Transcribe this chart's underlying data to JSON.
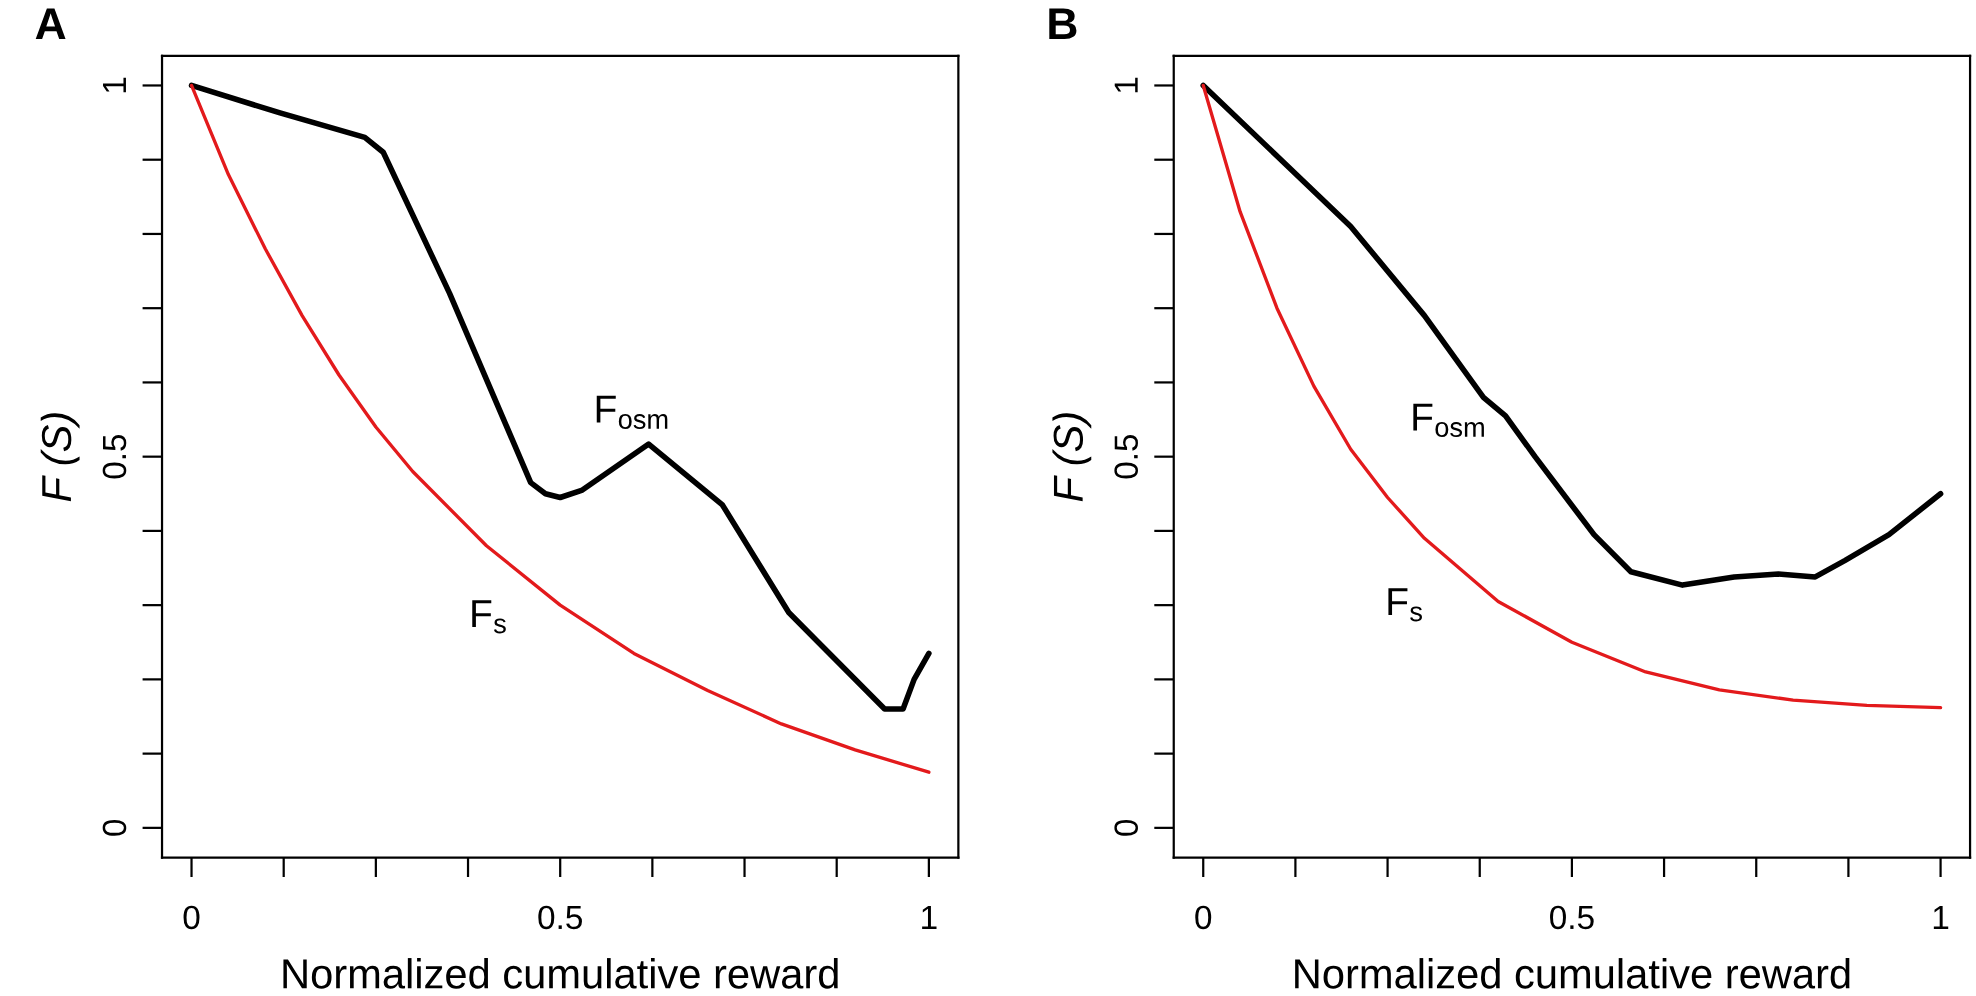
{
  "chart_data": [
    {
      "type": "line",
      "title": "A",
      "xlabel": "Normalized cumulative reward",
      "ylabel": "F (S)",
      "xlim": [
        -0.04,
        1.04
      ],
      "ylim": [
        -0.04,
        1.04
      ],
      "xticks": [
        0,
        {
          "value": 0.125,
          "label": null
        },
        {
          "value": 0.25,
          "label": null
        },
        {
          "value": 0.375,
          "label": null
        },
        0.5,
        {
          "value": 0.625,
          "label": null
        },
        {
          "value": 0.75,
          "label": null
        },
        {
          "value": 0.875,
          "label": null
        },
        1
      ],
      "yticks": [
        0,
        {
          "value": 0.1,
          "label": null
        },
        {
          "value": 0.2,
          "label": null
        },
        {
          "value": 0.3,
          "label": null
        },
        {
          "value": 0.4,
          "label": null
        },
        0.5,
        {
          "value": 0.6,
          "label": null
        },
        {
          "value": 0.7,
          "label": null
        },
        {
          "value": 0.8,
          "label": null
        },
        {
          "value": 0.9,
          "label": null
        },
        1
      ],
      "grid": false,
      "legend": false,
      "marker": "none",
      "line_style": "solid",
      "series": [
        {
          "name": "F$_{osm}$",
          "color": "#000000",
          "x": [
            0,
            0.12,
            0.235,
            0.26,
            0.35,
            0.46,
            0.48,
            0.5,
            0.53,
            0.62,
            0.72,
            0.81,
            0.85,
            0.94,
            0.965,
            0.98,
            1.0
          ],
          "values": [
            1,
            0.963,
            0.93,
            0.91,
            0.72,
            0.465,
            0.45,
            0.445,
            0.455,
            0.517,
            0.435,
            0.29,
            0.25,
            0.16,
            0.16,
            0.2,
            0.235
          ]
        },
        {
          "name": "F$_{s}$",
          "color": "#e31a1c",
          "x": [
            0,
            0.05,
            0.1,
            0.15,
            0.2,
            0.25,
            0.3,
            0.4,
            0.5,
            0.6,
            0.7,
            0.8,
            0.9,
            1.0
          ],
          "values": [
            1,
            0.88,
            0.78,
            0.69,
            0.61,
            0.54,
            0.48,
            0.38,
            0.3,
            0.235,
            0.185,
            0.14,
            0.105,
            0.075
          ]
        }
      ]
    },
    {
      "type": "line",
      "title": "B",
      "xlabel": "Normalized cumulative reward",
      "ylabel": "F (S)",
      "xlim": [
        -0.04,
        1.04
      ],
      "ylim": [
        -0.04,
        1.04
      ],
      "xticks": [
        0,
        {
          "value": 0.125,
          "label": null
        },
        {
          "value": 0.25,
          "label": null
        },
        {
          "value": 0.375,
          "label": null
        },
        0.5,
        {
          "value": 0.625,
          "label": null
        },
        {
          "value": 0.75,
          "label": null
        },
        {
          "value": 0.875,
          "label": null
        },
        1
      ],
      "yticks": [
        0,
        {
          "value": 0.1,
          "label": null
        },
        {
          "value": 0.2,
          "label": null
        },
        {
          "value": 0.3,
          "label": null
        },
        {
          "value": 0.4,
          "label": null
        },
        0.5,
        {
          "value": 0.6,
          "label": null
        },
        {
          "value": 0.7,
          "label": null
        },
        {
          "value": 0.8,
          "label": null
        },
        {
          "value": 0.9,
          "label": null
        },
        1
      ],
      "grid": false,
      "legend": false,
      "marker": "none",
      "line_style": "solid",
      "series": [
        {
          "name": "F$_{osm}$",
          "color": "#000000",
          "x": [
            0,
            0.1,
            0.2,
            0.3,
            0.38,
            0.41,
            0.45,
            0.53,
            0.58,
            0.65,
            0.72,
            0.78,
            0.83,
            0.87,
            0.93,
            1.0
          ],
          "values": [
            1,
            0.905,
            0.81,
            0.69,
            0.58,
            0.555,
            0.5,
            0.395,
            0.345,
            0.327,
            0.338,
            0.342,
            0.338,
            0.36,
            0.395,
            0.45
          ]
        },
        {
          "name": "F$_{s}$",
          "color": "#e31a1c",
          "x": [
            0,
            0.05,
            0.1,
            0.15,
            0.2,
            0.25,
            0.3,
            0.4,
            0.5,
            0.6,
            0.7,
            0.8,
            0.9,
            1.0
          ],
          "values": [
            1,
            0.83,
            0.7,
            0.595,
            0.51,
            0.445,
            0.39,
            0.305,
            0.25,
            0.21,
            0.186,
            0.172,
            0.165,
            0.162
          ]
        }
      ]
    }
  ]
}
